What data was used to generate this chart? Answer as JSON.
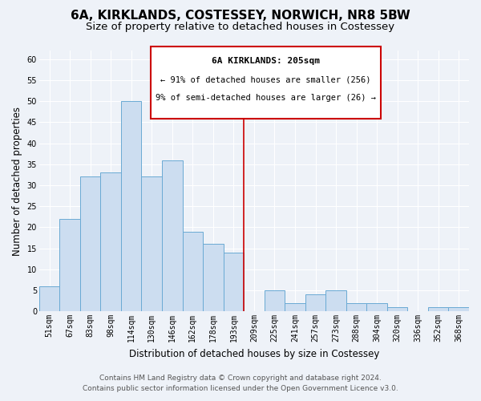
{
  "title": "6A, KIRKLANDS, COSTESSEY, NORWICH, NR8 5BW",
  "subtitle": "Size of property relative to detached houses in Costessey",
  "xlabel": "Distribution of detached houses by size in Costessey",
  "ylabel": "Number of detached properties",
  "bar_labels": [
    "51sqm",
    "67sqm",
    "83sqm",
    "98sqm",
    "114sqm",
    "130sqm",
    "146sqm",
    "162sqm",
    "178sqm",
    "193sqm",
    "209sqm",
    "225sqm",
    "241sqm",
    "257sqm",
    "273sqm",
    "288sqm",
    "304sqm",
    "320sqm",
    "336sqm",
    "352sqm",
    "368sqm"
  ],
  "bar_values": [
    6,
    22,
    32,
    33,
    50,
    32,
    36,
    19,
    16,
    14,
    0,
    5,
    2,
    4,
    5,
    2,
    2,
    1,
    0,
    1,
    1
  ],
  "bar_color": "#ccddf0",
  "bar_edge_color": "#6aaad4",
  "reference_line_x": 10.0,
  "reference_line_color": "#cc0000",
  "ylim": [
    0,
    62
  ],
  "yticks": [
    0,
    5,
    10,
    15,
    20,
    25,
    30,
    35,
    40,
    45,
    50,
    55,
    60
  ],
  "annotation_title": "6A KIRKLANDS: 205sqm",
  "annotation_line1": "← 91% of detached houses are smaller (256)",
  "annotation_line2": "9% of semi-detached houses are larger (26) →",
  "annotation_box_color": "#ffffff",
  "annotation_box_edge": "#cc0000",
  "footer_line1": "Contains HM Land Registry data © Crown copyright and database right 2024.",
  "footer_line2": "Contains public sector information licensed under the Open Government Licence v3.0.",
  "bg_color": "#eef2f8",
  "grid_color": "#ffffff",
  "title_fontsize": 11,
  "subtitle_fontsize": 9.5,
  "axis_label_fontsize": 8.5,
  "tick_fontsize": 7,
  "footer_fontsize": 6.5,
  "annotation_title_fontsize": 8,
  "annotation_text_fontsize": 7.5
}
